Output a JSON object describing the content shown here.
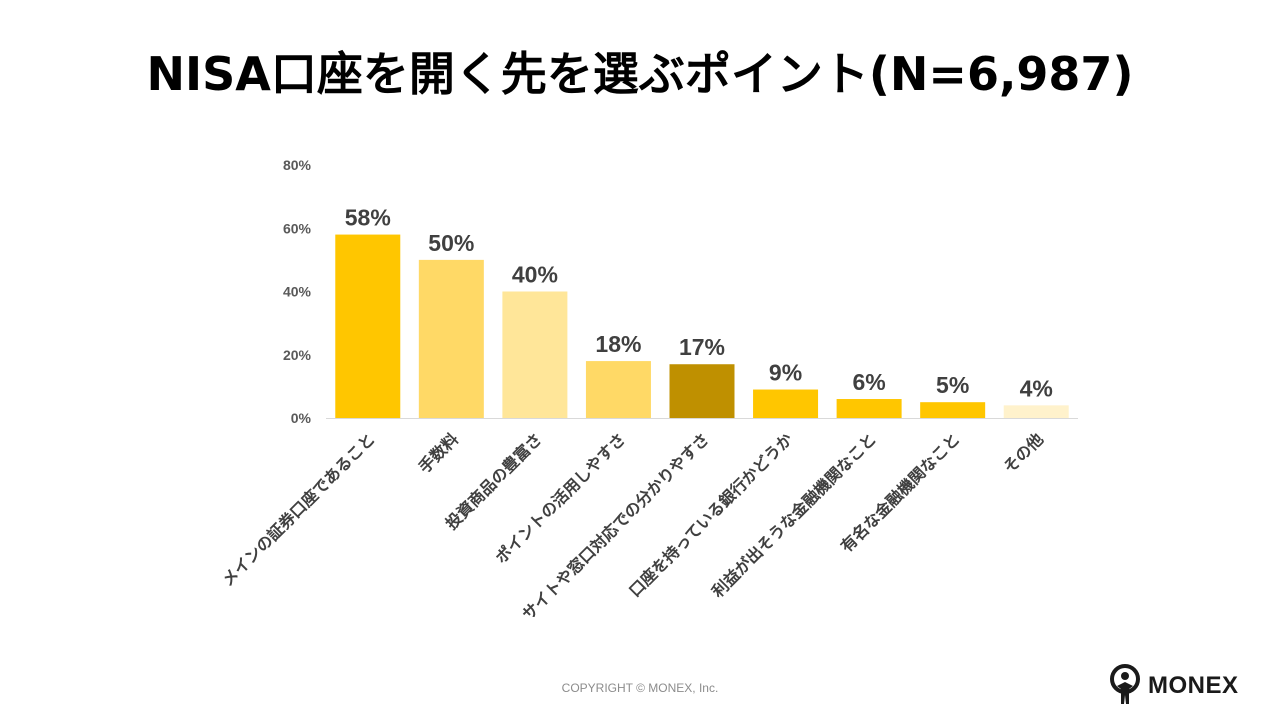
{
  "title": "NISA口座を開く先を選ぶポイント(N=6,987)",
  "chart_data": {
    "type": "bar",
    "title": "NISA口座を開く先を選ぶポイント(N=6,987)",
    "xlabel": "",
    "ylabel": "",
    "ylim": [
      0,
      80
    ],
    "yticks": [
      "0%",
      "20%",
      "40%",
      "60%",
      "80%"
    ],
    "ytick_values": [
      0,
      20,
      40,
      60,
      80
    ],
    "grid": false,
    "legend": "none",
    "categories": [
      "メインの証券口座であること",
      "手数料",
      "投資商品の豊富さ",
      "ポイントの活用しやすさ",
      "サイトや窓口対応での分かりやすさ",
      "口座を持っている銀行かどうか",
      "利益が出そうな金融機関なこと",
      "有名な金融機関なこと",
      "その他"
    ],
    "values": [
      58,
      50,
      40,
      18,
      17,
      9,
      6,
      5,
      4
    ],
    "value_labels": [
      "58%",
      "50%",
      "40%",
      "18%",
      "17%",
      "9%",
      "6%",
      "5%",
      "4%"
    ],
    "colors": [
      "#FFC600",
      "#FFD966",
      "#FFE699",
      "#FFD966",
      "#BF9000",
      "#FFC600",
      "#FFC600",
      "#FFC600",
      "#FFF2CC"
    ]
  },
  "footer": {
    "copyright": "COPYRIGHT © MONEX, Inc.",
    "logo_text": "MONEX",
    "logo_icon": "monex-person-icon"
  }
}
